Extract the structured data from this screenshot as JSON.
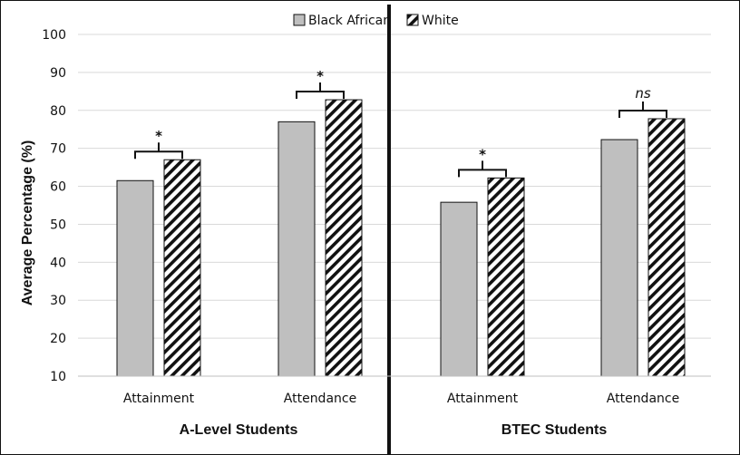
{
  "chart_data": {
    "type": "bar",
    "ylabel": "Average Percentage (%)",
    "ylim": [
      10,
      100
    ],
    "yticks": [
      10,
      20,
      30,
      40,
      50,
      60,
      70,
      80,
      90,
      100
    ],
    "grid": true,
    "legend_position": "top-center",
    "series": [
      {
        "name": "Black African",
        "color": "#bfbfbf",
        "pattern": "solid"
      },
      {
        "name": "White",
        "color": "#111111",
        "pattern": "diagonal-hatch"
      }
    ],
    "panels": [
      {
        "group_label": "A-Level Students",
        "categories": [
          "Attainment",
          "Attendance"
        ],
        "values": {
          "Black African": [
            61.5,
            77
          ],
          "White": [
            67,
            82.8
          ]
        },
        "significance": [
          "*",
          "*"
        ]
      },
      {
        "group_label": "BTEC Students",
        "categories": [
          "Attainment",
          "Attendance"
        ],
        "values": {
          "Black African": [
            55.8,
            72.3
          ],
          "White": [
            62.2,
            77.8
          ]
        },
        "significance": [
          "*",
          "ns"
        ]
      }
    ]
  }
}
